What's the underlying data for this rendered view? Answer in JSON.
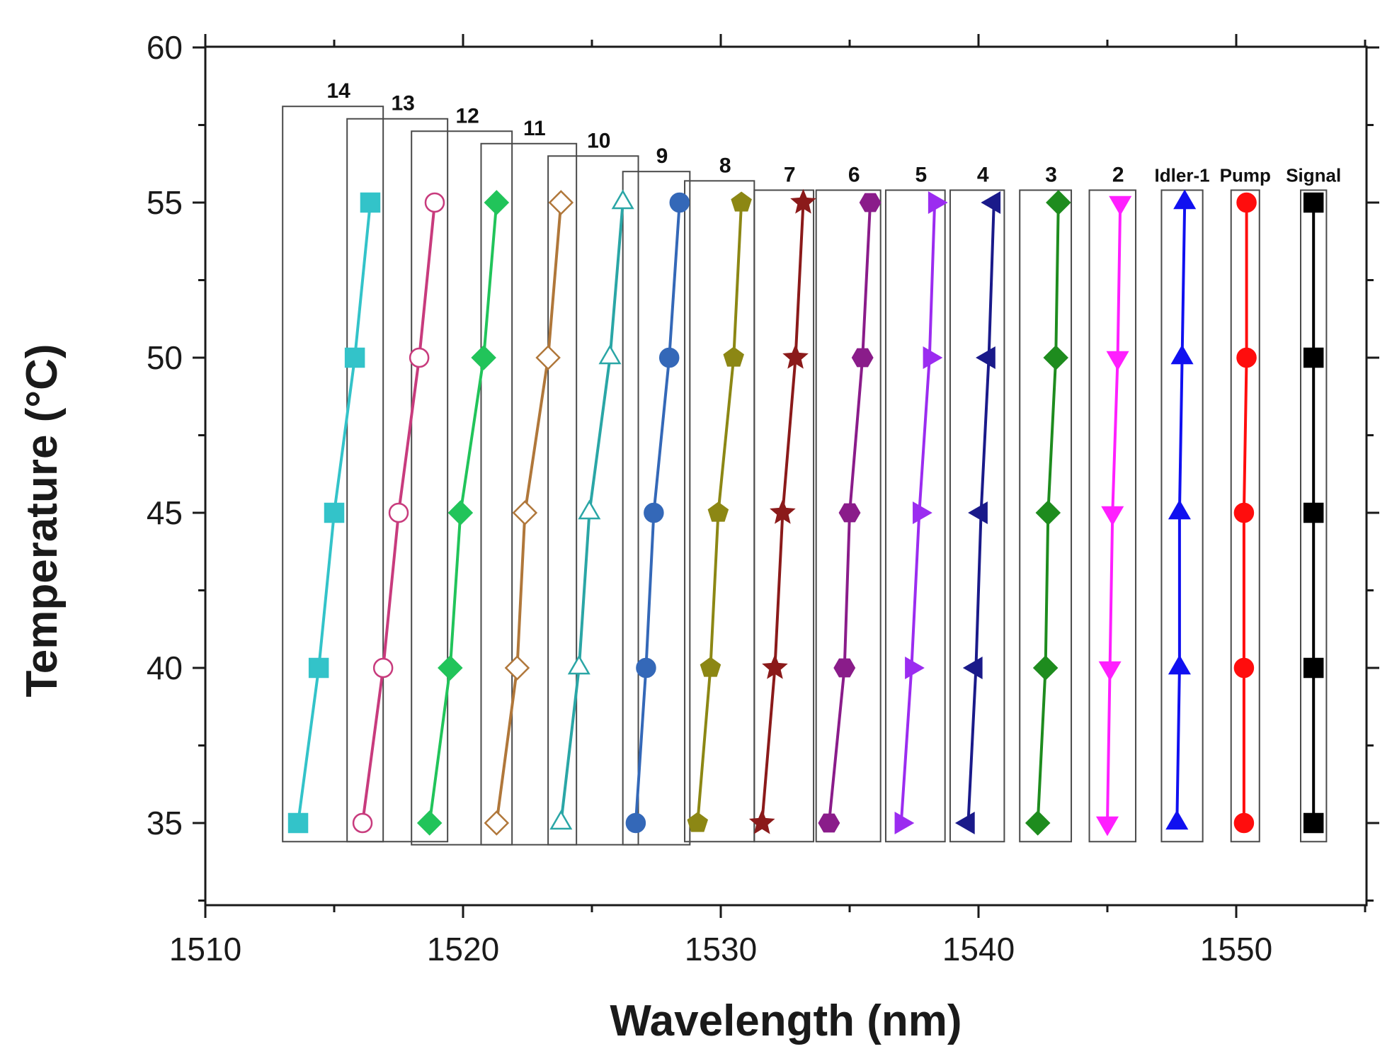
{
  "chart_data": {
    "type": "line",
    "title": "",
    "xlabel": "Wavelength (nm)",
    "ylabel": "Temperature (°C)",
    "xlim": [
      1510,
      1555
    ],
    "ylim": [
      32.5,
      60
    ],
    "x_ticks": [
      1510,
      1520,
      1530,
      1540,
      1550
    ],
    "y_ticks": [
      35,
      40,
      45,
      50,
      55,
      60
    ],
    "grid": false,
    "temperatures": [
      35,
      40,
      45,
      50,
      55
    ],
    "series": [
      {
        "name": "14",
        "label": "14",
        "color": "#33c3c9",
        "marker": "square",
        "filled": true,
        "x": [
          1513.6,
          1514.4,
          1515.0,
          1515.8,
          1516.4
        ],
        "y": [
          35,
          40,
          45,
          50,
          55
        ],
        "box": {
          "x0": 1513.0,
          "x1": 1516.9,
          "y0": 34.4,
          "y1": 58.1
        }
      },
      {
        "name": "13",
        "label": "13",
        "color": "#c83b7d",
        "marker": "circle",
        "filled": false,
        "x": [
          1516.1,
          1516.9,
          1517.5,
          1518.3,
          1518.9
        ],
        "y": [
          35,
          40,
          45,
          50,
          55
        ],
        "box": {
          "x0": 1515.5,
          "x1": 1519.4,
          "y0": 34.4,
          "y1": 57.7
        }
      },
      {
        "name": "12",
        "label": "12",
        "color": "#21c45a",
        "marker": "diamond",
        "filled": true,
        "x": [
          1518.7,
          1519.5,
          1519.9,
          1520.8,
          1521.3
        ],
        "y": [
          35,
          40,
          45,
          50,
          55
        ],
        "box": {
          "x0": 1518.0,
          "x1": 1521.9,
          "y0": 34.3,
          "y1": 57.3
        }
      },
      {
        "name": "11",
        "label": "11",
        "color": "#b0773a",
        "marker": "diamond",
        "filled": false,
        "x": [
          1521.3,
          1522.1,
          1522.4,
          1523.3,
          1523.8
        ],
        "y": [
          35,
          40,
          45,
          50,
          55
        ],
        "box": {
          "x0": 1520.7,
          "x1": 1524.4,
          "y0": 34.3,
          "y1": 56.9
        }
      },
      {
        "name": "10",
        "label": "10",
        "color": "#2aa6a6",
        "marker": "triangle-up",
        "filled": false,
        "x": [
          1523.8,
          1524.5,
          1524.9,
          1525.7,
          1526.2
        ],
        "y": [
          35,
          40,
          45,
          50,
          55
        ],
        "box": {
          "x0": 1523.3,
          "x1": 1526.8,
          "y0": 34.3,
          "y1": 56.5
        }
      },
      {
        "name": "9",
        "label": "9",
        "color": "#3468b8",
        "marker": "circle",
        "filled": true,
        "x": [
          1526.7,
          1527.1,
          1527.4,
          1528.0,
          1528.4
        ],
        "y": [
          35,
          40,
          45,
          50,
          55
        ],
        "box": {
          "x0": 1526.2,
          "x1": 1528.8,
          "y0": 34.3,
          "y1": 56.0
        }
      },
      {
        "name": "8",
        "label": "8",
        "color": "#8c8714",
        "marker": "pentagon",
        "filled": true,
        "x": [
          1529.1,
          1529.6,
          1529.9,
          1530.5,
          1530.8
        ],
        "y": [
          35,
          40,
          45,
          50,
          55
        ],
        "box": {
          "x0": 1528.6,
          "x1": 1531.3,
          "y0": 34.4,
          "y1": 55.7
        }
      },
      {
        "name": "7",
        "label": "7",
        "color": "#8b1a1a",
        "marker": "star",
        "filled": true,
        "x": [
          1531.6,
          1532.1,
          1532.4,
          1532.9,
          1533.2
        ],
        "y": [
          35,
          40,
          45,
          50,
          55
        ],
        "box": {
          "x0": 1531.3,
          "x1": 1533.6,
          "y0": 34.4,
          "y1": 55.4
        }
      },
      {
        "name": "6",
        "label": "6",
        "color": "#8a1c8a",
        "marker": "hexagon",
        "filled": true,
        "x": [
          1534.2,
          1534.8,
          1535.0,
          1535.5,
          1535.8
        ],
        "y": [
          35,
          40,
          45,
          50,
          55
        ],
        "box": {
          "x0": 1533.7,
          "x1": 1536.2,
          "y0": 34.4,
          "y1": 55.4
        }
      },
      {
        "name": "5",
        "label": "5",
        "color": "#9b2cf0",
        "marker": "triangle-right",
        "filled": true,
        "x": [
          1537.0,
          1537.4,
          1537.7,
          1538.1,
          1538.3
        ],
        "y": [
          35,
          40,
          45,
          50,
          55
        ],
        "box": {
          "x0": 1536.4,
          "x1": 1538.7,
          "y0": 34.4,
          "y1": 55.4
        }
      },
      {
        "name": "4",
        "label": "4",
        "color": "#1a1a8a",
        "marker": "triangle-left",
        "filled": true,
        "x": [
          1539.6,
          1539.9,
          1540.1,
          1540.4,
          1540.6
        ],
        "y": [
          35,
          40,
          45,
          50,
          55
        ],
        "box": {
          "x0": 1538.9,
          "x1": 1541.0,
          "y0": 34.4,
          "y1": 55.4
        }
      },
      {
        "name": "3",
        "label": "3",
        "color": "#1e8c1e",
        "marker": "diamond",
        "filled": true,
        "x": [
          1542.3,
          1542.6,
          1542.7,
          1543.0,
          1543.1
        ],
        "y": [
          35,
          40,
          45,
          50,
          55
        ],
        "box": {
          "x0": 1541.6,
          "x1": 1543.6,
          "y0": 34.4,
          "y1": 55.4
        }
      },
      {
        "name": "2",
        "label": "2",
        "color": "#ff1fff",
        "marker": "triangle-down",
        "filled": true,
        "x": [
          1545.0,
          1545.1,
          1545.2,
          1545.4,
          1545.5
        ],
        "y": [
          35,
          40,
          45,
          50,
          55
        ],
        "box": {
          "x0": 1544.3,
          "x1": 1546.1,
          "y0": 34.4,
          "y1": 55.4
        }
      },
      {
        "name": "Idler-1",
        "label": "Idler-1",
        "color": "#1010f0",
        "marker": "triangle-up",
        "filled": true,
        "x": [
          1547.7,
          1547.8,
          1547.8,
          1547.9,
          1548.0
        ],
        "y": [
          35,
          40,
          45,
          50,
          55
        ],
        "box": {
          "x0": 1547.1,
          "x1": 1548.7,
          "y0": 34.4,
          "y1": 55.4
        }
      },
      {
        "name": "Pump",
        "label": "Pump",
        "color": "#ff0d0d",
        "marker": "circle",
        "filled": true,
        "x": [
          1550.3,
          1550.3,
          1550.3,
          1550.4,
          1550.4
        ],
        "y": [
          35,
          40,
          45,
          50,
          55
        ],
        "box": {
          "x0": 1549.8,
          "x1": 1550.9,
          "y0": 34.4,
          "y1": 55.4
        }
      },
      {
        "name": "Signal",
        "label": "Signal",
        "color": "#000000",
        "marker": "square",
        "filled": true,
        "x": [
          1553.0,
          1553.0,
          1553.0,
          1553.0,
          1553.0
        ],
        "y": [
          35,
          40,
          45,
          50,
          55
        ],
        "box": {
          "x0": 1552.5,
          "x1": 1553.5,
          "y0": 34.4,
          "y1": 55.4
        }
      }
    ]
  }
}
